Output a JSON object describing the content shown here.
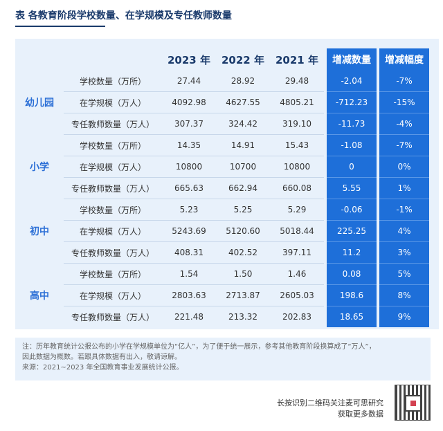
{
  "title": "表 各教育阶段学校数量、在学规模及专任教师数量",
  "headers": [
    "",
    "",
    "2023 年",
    "2022 年",
    "2021 年",
    "增减数量",
    "增减幅度"
  ],
  "groups": [
    {
      "name": "幼儿园",
      "rows": [
        {
          "metric": "学校数量（万所）",
          "v2023": "27.44",
          "v2022": "28.92",
          "v2021": "29.48",
          "change": "-2.04",
          "pct": "-7%"
        },
        {
          "metric": "在学规模（万人）",
          "v2023": "4092.98",
          "v2022": "4627.55",
          "v2021": "4805.21",
          "change": "-712.23",
          "pct": "-15%"
        },
        {
          "metric": "专任教师数量（万人）",
          "v2023": "307.37",
          "v2022": "324.42",
          "v2021": "319.10",
          "change": "-11.73",
          "pct": "-4%"
        }
      ]
    },
    {
      "name": "小学",
      "rows": [
        {
          "metric": "学校数量（万所）",
          "v2023": "14.35",
          "v2022": "14.91",
          "v2021": "15.43",
          "change": "-1.08",
          "pct": "-7%"
        },
        {
          "metric": "在学规模（万人）",
          "v2023": "10800",
          "v2022": "10700",
          "v2021": "10800",
          "change": "0",
          "pct": "0%"
        },
        {
          "metric": "专任教师数量（万人）",
          "v2023": "665.63",
          "v2022": "662.94",
          "v2021": "660.08",
          "change": "5.55",
          "pct": "1%"
        }
      ]
    },
    {
      "name": "初中",
      "rows": [
        {
          "metric": "学校数量（万所）",
          "v2023": "5.23",
          "v2022": "5.25",
          "v2021": "5.29",
          "change": "-0.06",
          "pct": "-1%"
        },
        {
          "metric": "在学规模（万人）",
          "v2023": "5243.69",
          "v2022": "5120.60",
          "v2021": "5018.44",
          "change": "225.25",
          "pct": "4%"
        },
        {
          "metric": "专任教师数量（万人）",
          "v2023": "408.31",
          "v2022": "402.52",
          "v2021": "397.11",
          "change": "11.2",
          "pct": "3%"
        }
      ]
    },
    {
      "name": "高中",
      "rows": [
        {
          "metric": "学校数量（万所）",
          "v2023": "1.54",
          "v2022": "1.50",
          "v2021": "1.46",
          "change": "0.08",
          "pct": "5%"
        },
        {
          "metric": "在学规模（万人）",
          "v2023": "2803.63",
          "v2022": "2713.87",
          "v2021": "2605.03",
          "change": "198.6",
          "pct": "8%"
        },
        {
          "metric": "专任教师数量（万人）",
          "v2023": "221.48",
          "v2022": "213.32",
          "v2021": "202.83",
          "change": "18.65",
          "pct": "9%"
        }
      ]
    }
  ],
  "notes": [
    "注：历年教育统计公报公布的小学在学规模单位为“亿人”，为了便于统一展示，参考其他教育阶段换算成了“万人”，",
    "因此数据为概数。若跟具体数据有出入，敬请谅解。",
    "来源：2021~2023 年全国教育事业发展统计公报。"
  ],
  "footer": {
    "line1": "长按识别二维码关注麦可思研究",
    "line2": "获取更多数据"
  },
  "colors": {
    "accent": "#1e6fd9",
    "title": "#1a3a6b",
    "panel": "#e8f1fb"
  }
}
